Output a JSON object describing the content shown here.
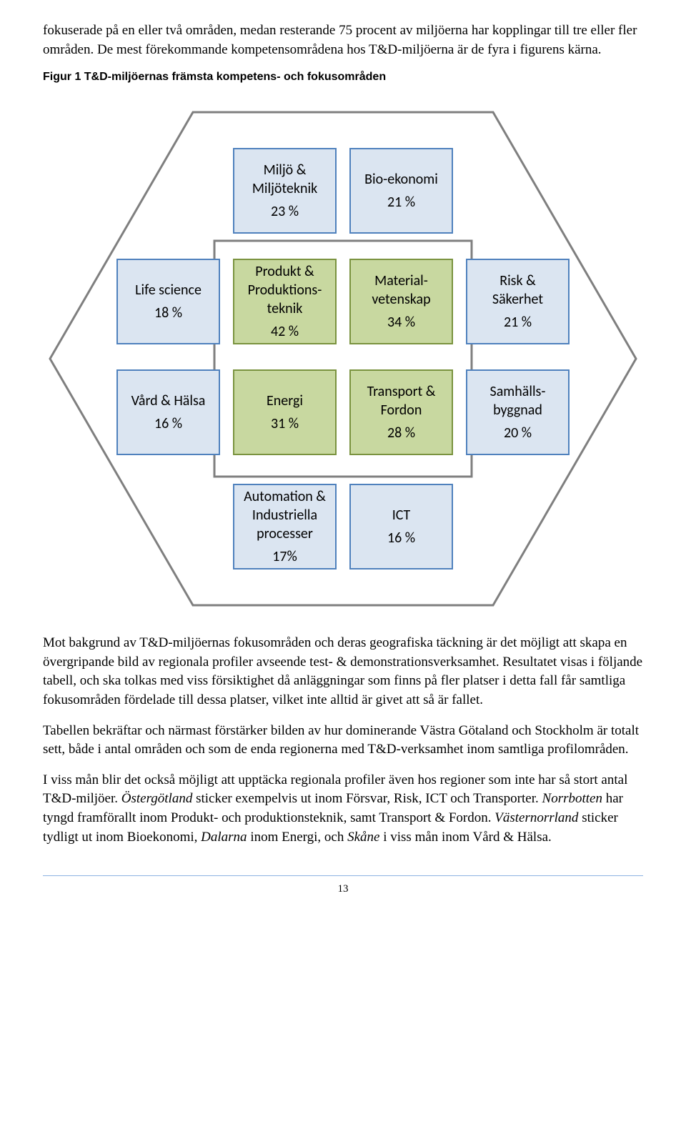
{
  "intro_paragraph": "fokuserade på en eller två områden, medan resterande 75 procent av miljöerna har kopplingar till tre eller fler områden. De mest förekommande kompetensområdena hos T&D-miljöerna är de fyra i figurens kärna.",
  "figure_caption": "Figur 1 T&D-miljöernas främsta kompetens- och fokusområden",
  "diagram": {
    "hex_stroke": "#7f7f7f",
    "hex_fill": "#ffffff",
    "inner_rect_stroke": "#7f7f7f",
    "inner_rect_fill": "#ffffff",
    "box_blue_fill": "#dbe5f1",
    "box_blue_stroke": "#4f81bd",
    "box_green_fill": "#c8d8a0",
    "box_green_stroke": "#7a933f",
    "rows": [
      {
        "pos": "top",
        "boxes": [
          {
            "label": "Miljö & Miljöteknik",
            "pct": "23 %",
            "variant": "blue"
          },
          {
            "label": "Bio-ekonomi",
            "pct": "21 %",
            "variant": "blue"
          }
        ]
      },
      {
        "pos": "mid1",
        "boxes": [
          {
            "label": "Life science",
            "pct": "18  %",
            "variant": "blue"
          },
          {
            "label": "Produkt & Produktions-teknik",
            "pct": "42 %",
            "variant": "green"
          },
          {
            "label": "Material-vetenskap",
            "pct": "34 %",
            "variant": "green"
          },
          {
            "label": "Risk & Säkerhet",
            "pct": "21 %",
            "variant": "blue"
          }
        ]
      },
      {
        "pos": "mid2",
        "boxes": [
          {
            "label": "Vård & Hälsa",
            "pct": "16  %",
            "variant": "blue"
          },
          {
            "label": "Energi",
            "pct": "31  %",
            "variant": "green"
          },
          {
            "label": "Transport & Fordon",
            "pct": "28  %",
            "variant": "green"
          },
          {
            "label": "Samhälls-byggnad",
            "pct": "20 %",
            "variant": "blue"
          }
        ]
      },
      {
        "pos": "bot",
        "boxes": [
          {
            "label": "Automation & Industriella processer",
            "pct": "17%",
            "variant": "blue"
          },
          {
            "label": "ICT",
            "pct": "16  %",
            "variant": "blue"
          }
        ]
      }
    ]
  },
  "para2": "Mot bakgrund av T&D-miljöernas fokusområden och deras geografiska täckning är det möjligt att skapa en övergripande bild av regionala profiler avseende test- & demonstrationsverksamhet. Resultatet visas i följande tabell, och ska tolkas med viss försiktighet då anläggningar som finns på fler platser i detta fall får samtliga fokusområden fördelade till dessa platser, vilket inte alltid är givet att så är fallet.",
  "para3": "Tabellen bekräftar och närmast förstärker bilden av hur dominerande Västra Götaland och Stockholm är totalt sett, både i antal områden och som de enda regionerna med T&D-verksamhet inom samtliga profilområden.",
  "para4_pre": "I viss mån blir det också möjligt att upptäcka regionala profiler även hos regioner som inte har så stort antal T&D-miljöer. ",
  "para4_i1": "Östergötland",
  "para4_mid1": " sticker exempelvis ut inom Försvar, Risk, ICT och Transporter. ",
  "para4_i2": "Norrbotten",
  "para4_mid2": " har tyngd framförallt inom Produkt- och produktionsteknik, samt Transport & Fordon. ",
  "para4_i3": "Västernorrland",
  "para4_mid3": " sticker tydligt ut inom Bioekonomi, ",
  "para4_i4": "Dalarna",
  "para4_mid4": " inom Energi, och ",
  "para4_i5": "Skåne",
  "para4_end": " i viss mån inom Vård & Hälsa.",
  "page_number": "13"
}
